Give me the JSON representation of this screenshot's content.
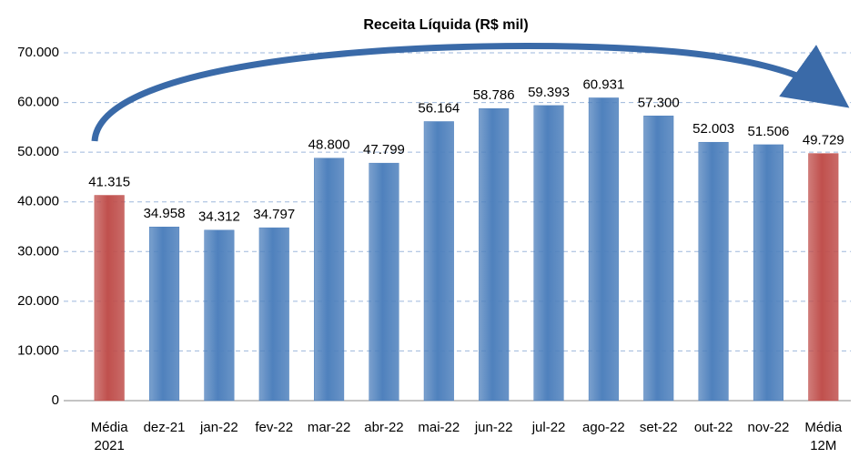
{
  "chart_data": {
    "type": "bar",
    "title": "Receita Líquida (R$ mil)",
    "categories": [
      "Média 2021",
      "dez-21",
      "jan-22",
      "fev-22",
      "mar-22",
      "abr-22",
      "mai-22",
      "jun-22",
      "jul-22",
      "ago-22",
      "set-22",
      "out-22",
      "nov-22",
      "Média 12M"
    ],
    "values": [
      41315,
      34958,
      34312,
      34797,
      48800,
      47799,
      56164,
      58786,
      59393,
      60931,
      57300,
      52003,
      51506,
      49729
    ],
    "value_labels": [
      "41.315",
      "34.958",
      "34.312",
      "34.797",
      "48.800",
      "47.799",
      "56.164",
      "58.786",
      "59.393",
      "60.931",
      "57.300",
      "52.003",
      "51.506",
      "49.729"
    ],
    "colors": [
      "#c0504d",
      "#4f81bd",
      "#4f81bd",
      "#4f81bd",
      "#4f81bd",
      "#4f81bd",
      "#4f81bd",
      "#4f81bd",
      "#4f81bd",
      "#4f81bd",
      "#4f81bd",
      "#4f81bd",
      "#4f81bd",
      "#c0504d"
    ],
    "ylim": [
      0,
      70000
    ],
    "yticks": [
      0,
      {
        "value": 10000,
        "label": "10.000"
      },
      {
        "value": 20000,
        "label": "20.000"
      },
      {
        "value": 30000,
        "label": "30.000"
      },
      {
        "value": 40000,
        "label": "40.000"
      },
      {
        "value": 50000,
        "label": "50.000"
      },
      {
        "value": 60000,
        "label": "60.000"
      },
      {
        "value": 70000,
        "label": "70.000"
      }
    ],
    "grid": true
  }
}
